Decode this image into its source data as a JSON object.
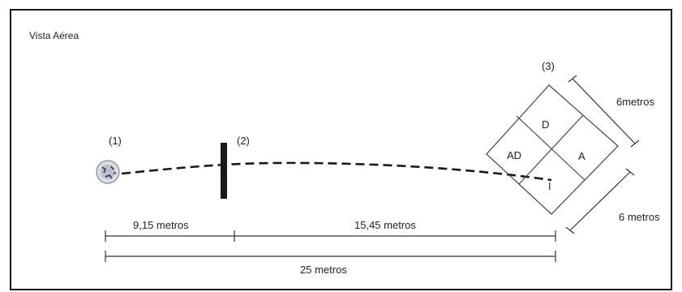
{
  "title": "Vista Aérea",
  "markers": {
    "ball": "(1)",
    "wall": "(2)",
    "goal": "(3)"
  },
  "goal_zones": {
    "top": "D",
    "left": "AD",
    "right": "A",
    "bottom": "I"
  },
  "dimensions": {
    "segment_1": "9,15 metros",
    "segment_2": "15,45 metros",
    "total": "25 metros",
    "goal_side_1": "6metros",
    "goal_side_2": "6 metros"
  },
  "colors": {
    "line": "#1a1a1a",
    "ball": "#b9bfcf"
  }
}
